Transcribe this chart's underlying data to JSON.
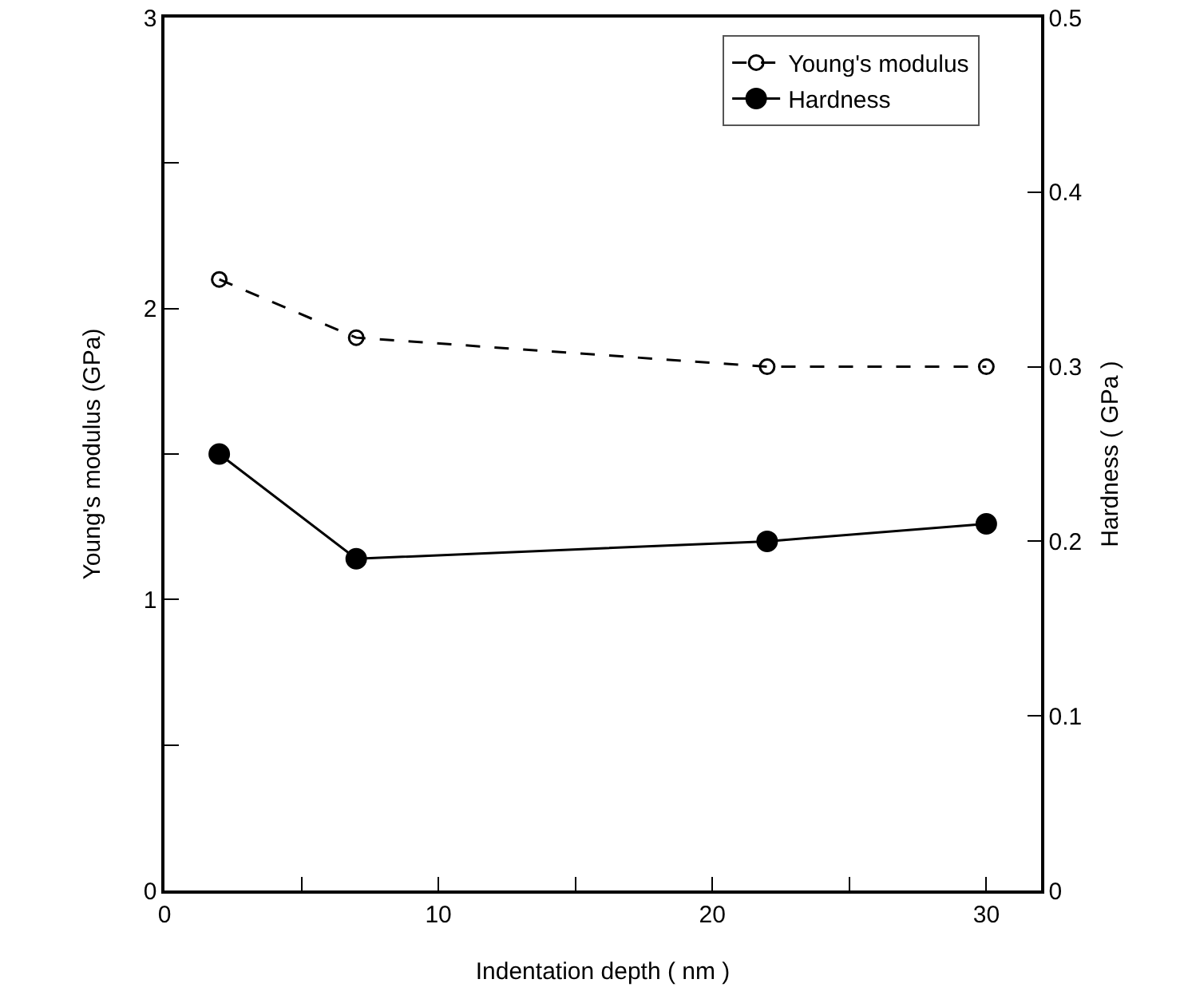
{
  "chart_data": {
    "type": "line",
    "xlabel": "Indentation depth ( nm )",
    "ylabel": "Young's modulus (GPa)",
    "y2label": "Hardness ( GPa )",
    "x": [
      2,
      7,
      22,
      30
    ],
    "series": [
      {
        "name": "Young's modulus",
        "color": "#000000",
        "values": [
          2.1,
          1.9,
          1.8,
          1.8
        ],
        "line_style": "dashed",
        "marker": "circle"
      },
      {
        "name": "Hardness",
        "color": "#000000",
        "values": [
          0.25,
          0.19,
          0.2,
          0.21
        ],
        "axis": "y2",
        "line_style": "solid",
        "marker": "circle"
      }
    ],
    "xlim": [
      0,
      32
    ],
    "xticks": [
      0,
      {
        "value": 5,
        "label": null
      },
      10,
      {
        "value": 15,
        "label": null
      },
      20,
      {
        "value": 25,
        "label": null
      },
      30
    ],
    "ylim": [
      0,
      3
    ],
    "yticks": [
      0,
      {
        "value": 0.5,
        "label": null
      },
      1,
      {
        "value": 1.5,
        "label": null
      },
      2,
      {
        "value": 2.5,
        "label": null
      },
      3
    ],
    "y2lim": [
      0,
      0.5
    ],
    "y2ticks": [
      0,
      0.1,
      0.2,
      0.3,
      0.4,
      0.5
    ],
    "grid": false,
    "legend": "top right"
  }
}
